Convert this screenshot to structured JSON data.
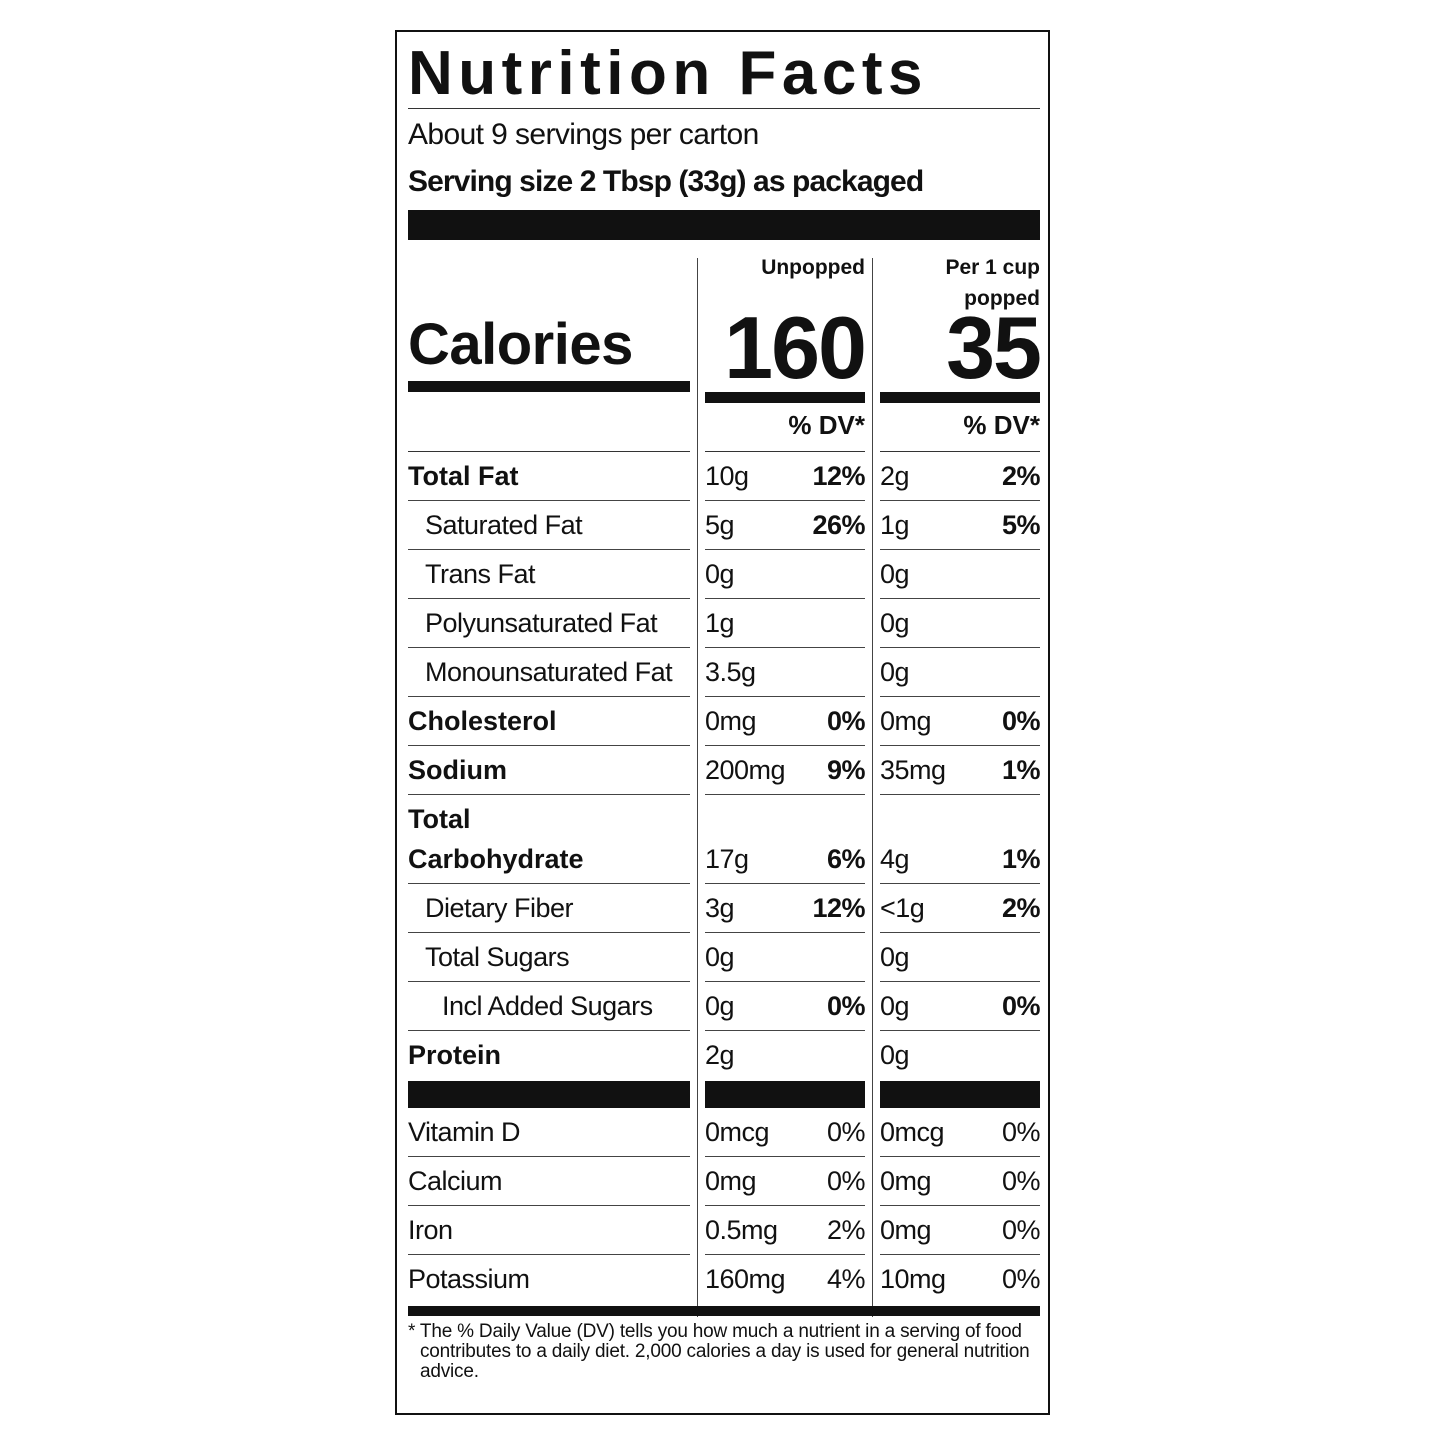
{
  "title": "Nutrition Facts",
  "servings": "About 9 servings per carton",
  "serving_size": "Serving size 2 Tbsp (33g) as packaged",
  "columns": [
    "Unpopped",
    "Per 1 cup popped"
  ],
  "calories_label": "Calories",
  "calories": [
    160,
    35
  ],
  "dv_header": [
    "% DV*",
    "% DV*"
  ],
  "nutrients": [
    {
      "name": "Total Fat",
      "level": 0,
      "values": [
        [
          "10g",
          "12%"
        ],
        [
          "2g",
          "2%"
        ]
      ]
    },
    {
      "name": "Saturated Fat",
      "level": 1,
      "values": [
        [
          "5g",
          "26%"
        ],
        [
          "1g",
          "5%"
        ]
      ]
    },
    {
      "name": "Trans Fat",
      "level": 1,
      "values": [
        [
          "0g"
        ],
        [
          "0g"
        ]
      ]
    },
    {
      "name": "Polyunsaturated Fat",
      "level": 1,
      "values": [
        [
          "1g"
        ],
        [
          "0g"
        ]
      ]
    },
    {
      "name": "Monounsaturated Fat",
      "level": 1,
      "values": [
        [
          "3.5g"
        ],
        [
          "0g"
        ]
      ]
    },
    {
      "name": "Cholesterol",
      "level": 0,
      "values": [
        [
          "0mg",
          "0%"
        ],
        [
          "0mg",
          "0%"
        ]
      ]
    },
    {
      "name": "Sodium",
      "level": 0,
      "values": [
        [
          "200mg",
          "9%"
        ],
        [
          "35mg",
          "1%"
        ]
      ]
    },
    {
      "name": "Total Carbohydrate",
      "level": 0,
      "values": [
        [
          "17g",
          "6%"
        ],
        [
          "4g",
          "1%"
        ]
      ]
    },
    {
      "name": "Dietary Fiber",
      "level": 1,
      "values": [
        [
          "3g",
          "12%"
        ],
        [
          "<1g",
          "2%"
        ]
      ]
    },
    {
      "name": "Total Sugars",
      "level": 1,
      "values": [
        [
          "0g"
        ],
        [
          "0g"
        ]
      ]
    },
    {
      "name": "Incl Added Sugars",
      "level": 2,
      "values": [
        [
          "0g",
          "0%"
        ],
        [
          "0g",
          "0%"
        ]
      ]
    },
    {
      "name": "Protein",
      "level": 0,
      "values": [
        [
          "2g"
        ],
        [
          "0g"
        ]
      ]
    }
  ],
  "vitamins": [
    {
      "name": "Vitamin D",
      "values": [
        [
          "0mcg",
          "0%"
        ],
        [
          "0mcg",
          "0%"
        ]
      ]
    },
    {
      "name": "Calcium",
      "values": [
        [
          "0mg",
          "0%"
        ],
        [
          "0mg",
          "0%"
        ]
      ]
    },
    {
      "name": "Iron",
      "values": [
        [
          "0.5mg",
          "2%"
        ],
        [
          "0mg",
          "0%"
        ]
      ]
    },
    {
      "name": "Potassium",
      "values": [
        [
          "160mg",
          "4%"
        ],
        [
          "10mg",
          "0%"
        ]
      ]
    }
  ],
  "footnote": "* The % Daily Value (DV) tells you how much a nutrient in a serving of food contributes to a daily diet. 2,000 calories a day is used for general nutrition advice."
}
